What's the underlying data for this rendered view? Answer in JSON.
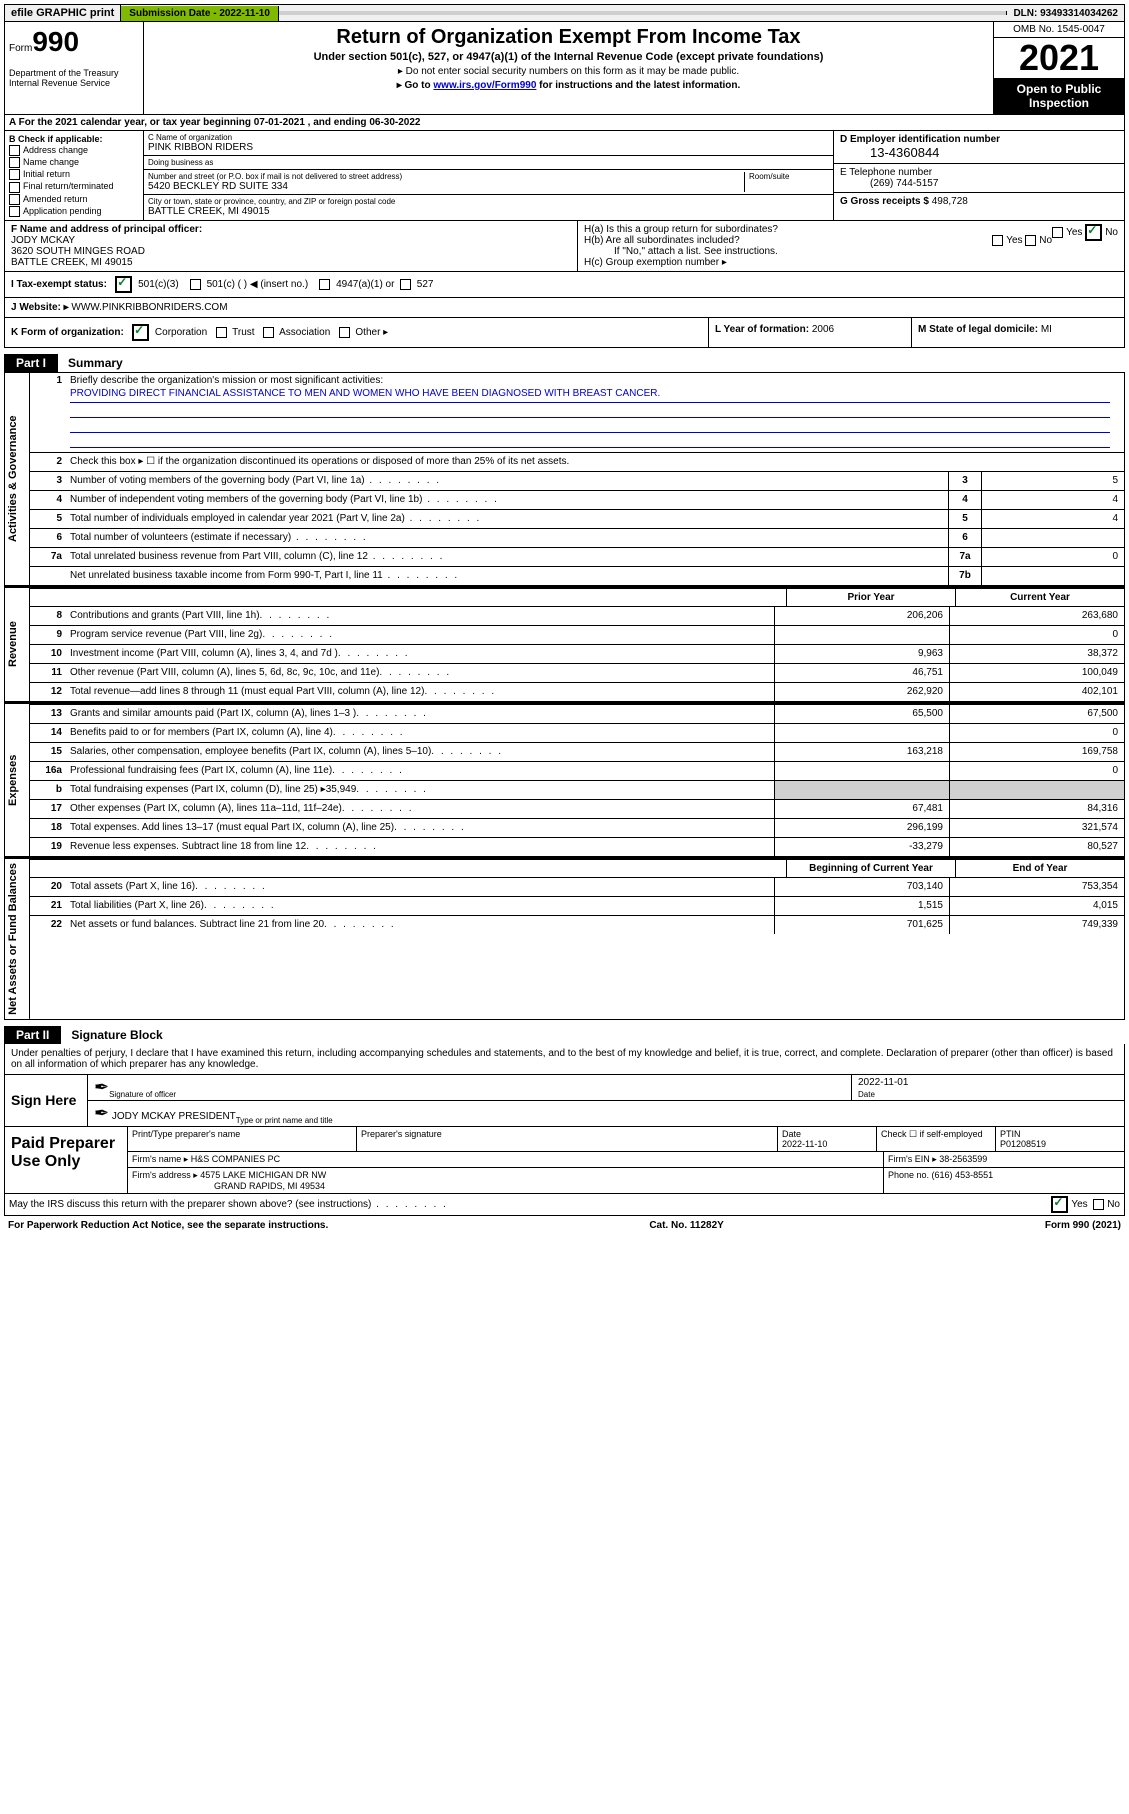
{
  "topbar": {
    "efile": "efile GRAPHIC print",
    "subdate_label": "Submission Date - ",
    "subdate": "2022-11-10",
    "dln_label": "DLN: ",
    "dln": "93493314034262"
  },
  "header": {
    "form_label": "Form",
    "form_num": "990",
    "dept": "Department of the Treasury\nInternal Revenue Service",
    "title": "Return of Organization Exempt From Income Tax",
    "sub": "Under section 501(c), 527, or 4947(a)(1) of the Internal Revenue Code (except private foundations)",
    "note1": "▸ Do not enter social security numbers on this form as it may be made public.",
    "note2_pre": "▸ Go to ",
    "note2_link": "www.irs.gov/Form990",
    "note2_post": " for instructions and the latest information.",
    "omb": "OMB No. 1545-0047",
    "year": "2021",
    "open": "Open to Public Inspection"
  },
  "rowA": "A For the 2021 calendar year, or tax year beginning 07-01-2021   , and ending 06-30-2022",
  "blockB": {
    "title": "B Check if applicable:",
    "items": [
      "Address change",
      "Name change",
      "Initial return",
      "Final return/terminated",
      "Amended return",
      "Application pending"
    ]
  },
  "blockC": {
    "name_label": "C Name of organization",
    "name": "PINK RIBBON RIDERS",
    "dba_label": "Doing business as",
    "dba": "",
    "addr_label": "Number and street (or P.O. box if mail is not delivered to street address)",
    "addr": "5420 BECKLEY RD SUITE 334",
    "room_label": "Room/suite",
    "city_label": "City or town, state or province, country, and ZIP or foreign postal code",
    "city": "BATTLE CREEK, MI  49015"
  },
  "blockD": {
    "label": "D Employer identification number",
    "ein": "13-4360844"
  },
  "blockE": {
    "label": "E Telephone number",
    "phone": "(269) 744-5157"
  },
  "blockG": {
    "label": "G Gross receipts $ ",
    "val": "498,728"
  },
  "blockF": {
    "label": "F Name and address of principal officer:",
    "name": "JODY MCKAY",
    "addr1": "3620 SOUTH MINGES ROAD",
    "addr2": "BATTLE CREEK, MI  49015"
  },
  "blockH": {
    "a": "H(a)  Is this a group return for subordinates?",
    "a_yes": "Yes",
    "a_no": "No",
    "b": "H(b)  Are all subordinates included?",
    "b_yes": "Yes",
    "b_no": "No",
    "b_note": "If \"No,\" attach a list. See instructions.",
    "c": "H(c)  Group exemption number ▸"
  },
  "rowI": {
    "label": "I   Tax-exempt status:",
    "c3": "501(c)(3)",
    "cblank": "501(c) (  ) ◀ (insert no.)",
    "a1": "4947(a)(1) or",
    "s527": "527"
  },
  "rowJ": {
    "label": "J   Website: ▸ ",
    "val": "WWW.PINKRIBBONRIDERS.COM"
  },
  "rowK": {
    "label": "K Form of organization:",
    "corp": "Corporation",
    "trust": "Trust",
    "assoc": "Association",
    "other": "Other ▸",
    "L": "L Year of formation: ",
    "Lval": "2006",
    "M": "M State of legal domicile: ",
    "Mval": "MI"
  },
  "parts": {
    "p1": "Part I",
    "p1t": "Summary",
    "p2": "Part II",
    "p2t": "Signature Block"
  },
  "sidebars": {
    "gov": "Activities & Governance",
    "rev": "Revenue",
    "exp": "Expenses",
    "net": "Net Assets or Fund Balances"
  },
  "summary": {
    "l1": "Briefly describe the organization's mission or most significant activities:",
    "mission": "PROVIDING DIRECT FINANCIAL ASSISTANCE TO MEN AND WOMEN WHO HAVE BEEN DIAGNOSED WITH BREAST CANCER.",
    "l2": "Check this box ▸ ☐  if the organization discontinued its operations or disposed of more than 25% of its net assets.",
    "l3": "Number of voting members of the governing body (Part VI, line 1a)",
    "l4": "Number of independent voting members of the governing body (Part VI, line 1b)",
    "l5": "Total number of individuals employed in calendar year 2021 (Part V, line 2a)",
    "l6": "Total number of volunteers (estimate if necessary)",
    "l7a": "Total unrelated business revenue from Part VIII, column (C), line 12",
    "l7b": "Net unrelated business taxable income from Form 990-T, Part I, line 11",
    "v3": "5",
    "v4": "4",
    "v5": "4",
    "v6": "",
    "v7a": "0",
    "v7b": ""
  },
  "colhdr": {
    "prior": "Prior Year",
    "curr": "Current Year",
    "boc": "Beginning of Current Year",
    "eoy": "End of Year"
  },
  "revenue": [
    {
      "n": "8",
      "d": "Contributions and grants (Part VIII, line 1h)",
      "p": "206,206",
      "c": "263,680"
    },
    {
      "n": "9",
      "d": "Program service revenue (Part VIII, line 2g)",
      "p": "",
      "c": "0"
    },
    {
      "n": "10",
      "d": "Investment income (Part VIII, column (A), lines 3, 4, and 7d )",
      "p": "9,963",
      "c": "38,372"
    },
    {
      "n": "11",
      "d": "Other revenue (Part VIII, column (A), lines 5, 6d, 8c, 9c, 10c, and 11e)",
      "p": "46,751",
      "c": "100,049"
    },
    {
      "n": "12",
      "d": "Total revenue—add lines 8 through 11 (must equal Part VIII, column (A), line 12)",
      "p": "262,920",
      "c": "402,101"
    }
  ],
  "expenses": [
    {
      "n": "13",
      "d": "Grants and similar amounts paid (Part IX, column (A), lines 1–3 )",
      "p": "65,500",
      "c": "67,500"
    },
    {
      "n": "14",
      "d": "Benefits paid to or for members (Part IX, column (A), line 4)",
      "p": "",
      "c": "0"
    },
    {
      "n": "15",
      "d": "Salaries, other compensation, employee benefits (Part IX, column (A), lines 5–10)",
      "p": "163,218",
      "c": "169,758"
    },
    {
      "n": "16a",
      "d": "Professional fundraising fees (Part IX, column (A), line 11e)",
      "p": "",
      "c": "0"
    },
    {
      "n": "b",
      "d": "Total fundraising expenses (Part IX, column (D), line 25) ▸35,949",
      "p": "GREY",
      "c": "GREY"
    },
    {
      "n": "17",
      "d": "Other expenses (Part IX, column (A), lines 11a–11d, 11f–24e)",
      "p": "67,481",
      "c": "84,316"
    },
    {
      "n": "18",
      "d": "Total expenses. Add lines 13–17 (must equal Part IX, column (A), line 25)",
      "p": "296,199",
      "c": "321,574"
    },
    {
      "n": "19",
      "d": "Revenue less expenses. Subtract line 18 from line 12",
      "p": "-33,279",
      "c": "80,527"
    }
  ],
  "netassets": [
    {
      "n": "20",
      "d": "Total assets (Part X, line 16)",
      "p": "703,140",
      "c": "753,354"
    },
    {
      "n": "21",
      "d": "Total liabilities (Part X, line 26)",
      "p": "1,515",
      "c": "4,015"
    },
    {
      "n": "22",
      "d": "Net assets or fund balances. Subtract line 21 from line 20",
      "p": "701,625",
      "c": "749,339"
    }
  ],
  "sig": {
    "declare": "Under penalties of perjury, I declare that I have examined this return, including accompanying schedules and statements, and to the best of my knowledge and belief, it is true, correct, and complete. Declaration of preparer (other than officer) is based on all information of which preparer has any knowledge.",
    "sign_here": "Sign Here",
    "sig_officer": "Signature of officer",
    "date": "2022-11-01",
    "officer": "JODY MCKAY  PRESIDENT",
    "type_name": "Type or print name and title"
  },
  "paid": {
    "label": "Paid Preparer Use Only",
    "h_name": "Print/Type preparer's name",
    "h_sig": "Preparer's signature",
    "h_date": "Date",
    "date": "2022-11-10",
    "h_check": "Check ☐ if self-employed",
    "h_ptin": "PTIN",
    "ptin": "P01208519",
    "firm_l": "Firm's name   ▸ ",
    "firm": "H&S COMPANIES PC",
    "ein_l": "Firm's EIN ▸ ",
    "ein": "38-2563599",
    "addr_l": "Firm's address ▸ ",
    "addr1": "4575 LAKE MICHIGAN DR NW",
    "addr2": "GRAND RAPIDS, MI  49534",
    "phone_l": "Phone no. ",
    "phone": "(616) 453-8551"
  },
  "footer": {
    "irs_q": "May the IRS discuss this return with the preparer shown above? (see instructions)",
    "yes": "Yes",
    "no": "No",
    "pra": "For Paperwork Reduction Act Notice, see the separate instructions.",
    "cat": "Cat. No. 11282Y",
    "form": "Form 990 (2021)"
  }
}
